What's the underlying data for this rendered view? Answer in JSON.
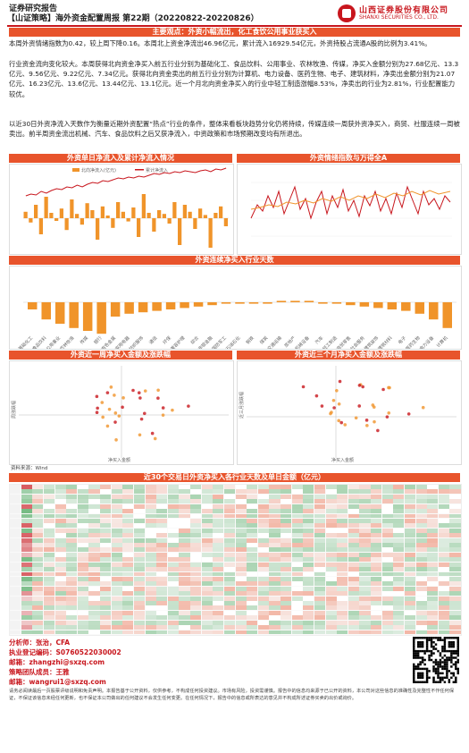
{
  "header": {
    "tag": "证券研究报告",
    "title": "【山证策略】海外资金配置周报 第22期（20220822-20220826）"
  },
  "logo": {
    "cn": "山西证券股份有限公司",
    "en": "SHANXI SECURITIES CO., LTD."
  },
  "summary": {
    "banner": "主要观点：外资小幅流出，化工食饮公用事业获买入",
    "p1": "本周外资情绪指数为0.42，较上周下降0.16。本周北上资金净流出46.96亿元，累计流入16929.54亿元，外资持股占流通A股的比例为3.41%。",
    "p2": "行业资金流向变化较大。本周获得北向资金净买入前五行业分别为基础化工、食品饮料、公用事业、农林牧渔、传媒，净买入金额分别为27.68亿元、13.3亿元、9.56亿元、9.22亿元、7.34亿元。获得北向资金卖出的前五行业分别为计算机、电力设备、医药生物、电子、建筑材料，净卖出金额分别为21.07亿元、16.23亿元、13.6亿元、13.44亿元、13.1亿元。近一个月北向资金净买入的行业中轻工制造涨幅8.53%，净卖出的行业为2.81%，行业配置能力较优。",
    "p3": "以近30日外资净流入天数作为衡量近期外资配置“热点”行业的条件，整体来看板块趋势分化仍将持续，传媒连续一周获外资净买入，商贸、社服连续一周被卖出。前半周资金流出机械、汽车、食品饮料之后又获净流入，中资政策和市场预期改变均有所退出。"
  },
  "section_flow": {
    "left_title": "外资单日净流入及累计净流入情况",
    "right_title": "外资情绪指数与万得全A",
    "left_legend": "北向净流入(亿元)",
    "left_legend2": "累计净流入",
    "bars": [
      12,
      -8,
      25,
      -30,
      40,
      10,
      -5,
      18,
      -22,
      35,
      8,
      -12,
      28,
      15,
      -40,
      22,
      5,
      -18,
      30,
      12,
      -6,
      20,
      -35,
      45,
      10,
      -25,
      15,
      8,
      -10,
      30,
      -50,
      25,
      12,
      -20,
      18,
      6,
      -55,
      10,
      22,
      -15
    ],
    "line": [
      60,
      62,
      61,
      65,
      63,
      66,
      68,
      67,
      70,
      69,
      72,
      70,
      73,
      75,
      74,
      77,
      76,
      78,
      80,
      79,
      81,
      80,
      82,
      81,
      83,
      85,
      84,
      86,
      85,
      87,
      86,
      88,
      87,
      86,
      88,
      89,
      87,
      90,
      89,
      91
    ]
  },
  "section_days": {
    "title": "外资连续净买入行业天数",
    "values": [
      -5,
      -12,
      -15,
      -18,
      -20,
      -22,
      -10,
      -8,
      -7,
      -6,
      -5,
      -4,
      -3,
      -2,
      -1,
      -1,
      -1,
      -1,
      1,
      1,
      1,
      -1,
      -1,
      -2,
      -3,
      -4,
      -5,
      -6,
      -8,
      -12,
      -18
    ],
    "categories": [
      "基础化工",
      "食品饮料",
      "公用事业",
      "农林牧渔",
      "传媒",
      "银行",
      "有色金属",
      "家用电器",
      "纺织服饰",
      "通信",
      "环保",
      "美容护理",
      "综合",
      "非银金融",
      "国防军工",
      "石油石化",
      "钢铁",
      "煤炭",
      "交通运输",
      "房地产",
      "机械设备",
      "汽车",
      "轻工制造",
      "商贸零售",
      "社会服务",
      "建筑装饰",
      "建筑材料",
      "电子",
      "医药生物",
      "电力设备",
      "计算机"
    ]
  },
  "section_scatter": {
    "left_title": "外资近一周净买入金额及涨跌幅",
    "right_title": "外资近三个月净买入金额及涨跌幅",
    "left_xlabel": "净买入金额",
    "right_xlabel": "净买入金额",
    "left_ylabel": "周涨跌幅",
    "right_ylabel": "近三月涨跌幅",
    "source": "资料来源：Wind"
  },
  "section_heatmap": {
    "title": "近30个交易日外资净买入各行业天数及单日金额（亿元）"
  },
  "analyst": {
    "a1": "分析师：张治，CFA",
    "a2": "执业登记编码：S0760522030002",
    "a3": "邮箱：zhangzhi@sxzq.com",
    "a4": "策略团队成员：王雅",
    "a5": "邮箱：wangrui1@sxzq.com"
  },
  "disclaimer": "请务必阅读最后一页股票评级说明和免责声明。本报告基于公开资料，仅供参考，不构成任何投资建议。市场有风险，投资需谨慎。报告中的信息均来源于已公开的资料，本公司对这些信息的准确性及完整性不作任何保证，不保证该信息未经任何更新，也不保证本公司做出的任何建议不会发生任何变更。在任何情况下，报告中的信息或所表达的意见并不构成所述证券买卖的出价或询价。",
  "colors": {
    "accent": "#e8542c",
    "brand": "#c8161d",
    "bar": "#f0942a",
    "line": "#c8161d"
  }
}
